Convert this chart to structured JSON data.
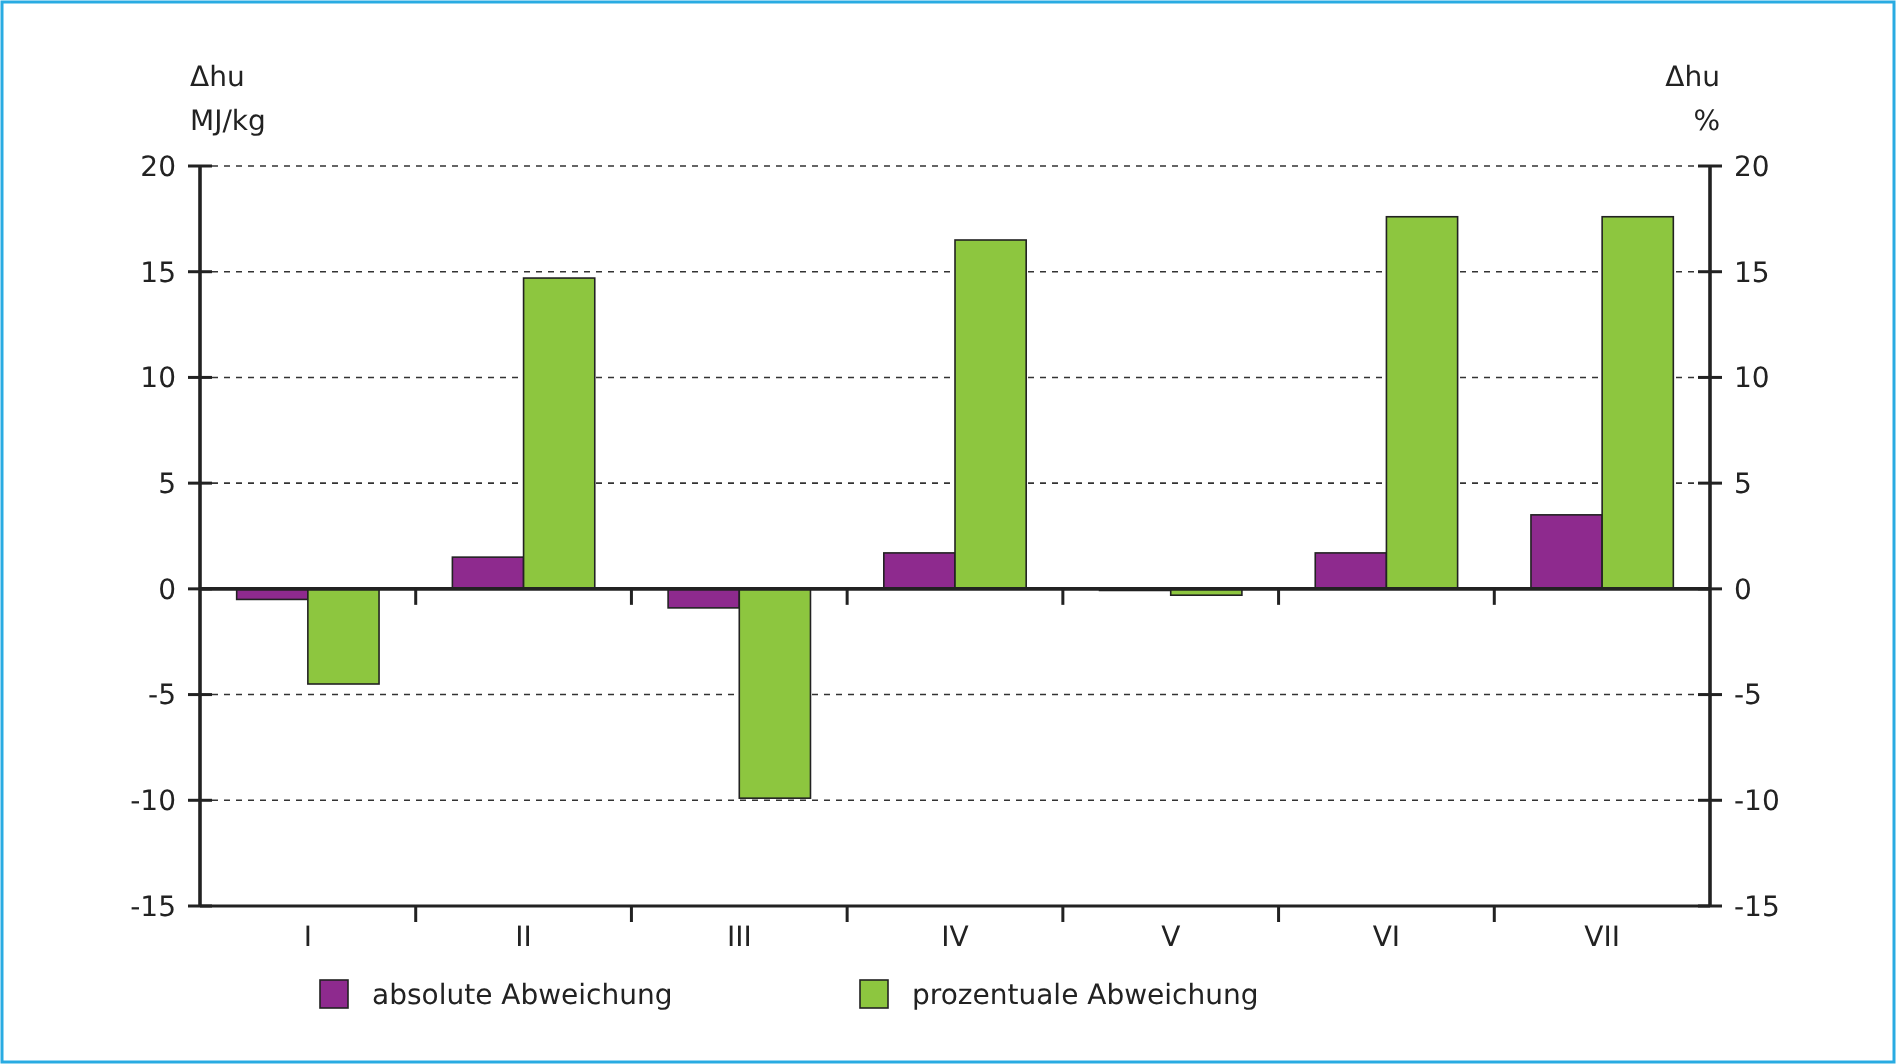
{
  "chart_data": {
    "type": "bar",
    "ylabel": "Δhu\nMJ/kg",
    "y2label": "Δhu\n%",
    "categories": [
      "I",
      "II",
      "III",
      "IV",
      "V",
      "VI",
      "VII"
    ],
    "series": [
      {
        "name": "absolute Abweichung",
        "color": "#8e2a8e",
        "values": [
          -0.5,
          1.5,
          -0.9,
          1.7,
          0,
          1.7,
          3.5
        ]
      },
      {
        "name": "prozentuale Abweichung",
        "color": "#8dc63f",
        "values": [
          -4.5,
          14.7,
          -9.9,
          16.5,
          -0.3,
          17.6,
          17.6
        ]
      }
    ],
    "ylim": [
      -15,
      20
    ],
    "yticks": [
      -15,
      -10,
      -5,
      0,
      5,
      10,
      15,
      20
    ],
    "y2lim": [
      -15,
      20
    ],
    "y2ticks": [
      -15,
      -10,
      -5,
      0,
      5,
      10,
      15,
      20
    ],
    "grid": "y",
    "legend": "bottom"
  }
}
